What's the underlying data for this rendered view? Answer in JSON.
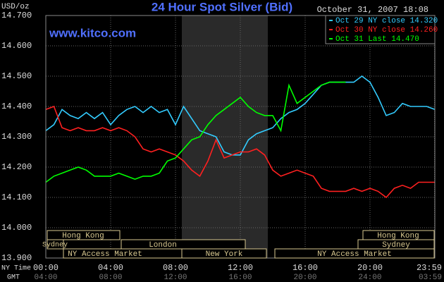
{
  "chart_data": {
    "type": "line",
    "title": "24 Hour Spot Silver (Bid)",
    "date": "October 31, 2007 18:08",
    "website": "www.kitco.com",
    "y_unit": "USD/oz",
    "x_row_labels": [
      "NY Time",
      "GMT"
    ],
    "sessions": [
      "Hong Kong",
      "Hong Kong",
      "Sydney",
      "London",
      "Sydney",
      "NY Access Market",
      "New York",
      "NY Access Market"
    ],
    "xlim": [
      0,
      24
    ],
    "xticks": [
      {
        "value": 0,
        "label": "00:00"
      },
      {
        "value": 4,
        "label": "04:00"
      },
      {
        "value": 8,
        "label": "08:00"
      },
      {
        "value": 12,
        "label": "12:00"
      },
      {
        "value": 16,
        "label": "16:00"
      },
      {
        "value": 20,
        "label": "20:00"
      },
      {
        "value": 23.98,
        "label": "23:59"
      }
    ],
    "gmt_ticks": [
      {
        "value": 0,
        "label": "04:00"
      },
      {
        "value": 4,
        "label": "08:00"
      },
      {
        "value": 8,
        "label": "12:00"
      },
      {
        "value": 12,
        "label": "16:00"
      },
      {
        "value": 16,
        "label": "20:00"
      },
      {
        "value": 20,
        "label": "24:00"
      },
      {
        "value": 23.98,
        "label": "03:59"
      }
    ],
    "ylim": [
      13.9,
      14.7
    ],
    "yticks": [
      {
        "value": 13.9,
        "label": "13.900"
      },
      {
        "value": 14,
        "label": "14.000"
      },
      {
        "value": 14.1,
        "label": "14.100"
      },
      {
        "value": 14.2,
        "label": "14.200"
      },
      {
        "value": 14.3,
        "label": "14.300"
      },
      {
        "value": 14.4,
        "label": "14.400"
      },
      {
        "value": 14.5,
        "label": "14.500"
      },
      {
        "value": 14.6,
        "label": "14.600"
      },
      {
        "value": 14.7,
        "label": "14.700"
      }
    ],
    "grid": true,
    "x": [
      0,
      0.5,
      1,
      1.5,
      2,
      2.5,
      3,
      3.5,
      4,
      4.5,
      5,
      5.5,
      6,
      6.5,
      7,
      7.5,
      8,
      8.5,
      9,
      9.5,
      10,
      10.5,
      11,
      11.5,
      12,
      12.5,
      13,
      13.5,
      14,
      14.5,
      15,
      15.5,
      16,
      16.5,
      17,
      17.5,
      18,
      18.5,
      19,
      19.5,
      20,
      20.5,
      21,
      21.5,
      22,
      22.5,
      23,
      23.5,
      24
    ],
    "series": [
      {
        "name": "Oct 29 NY close 14.320",
        "color": "#33ccff",
        "values": [
          14.32,
          14.34,
          14.39,
          14.37,
          14.36,
          14.38,
          14.36,
          14.38,
          14.34,
          14.37,
          14.39,
          14.4,
          14.38,
          14.4,
          14.38,
          14.39,
          14.34,
          14.4,
          14.36,
          14.32,
          14.31,
          14.3,
          14.25,
          14.24,
          14.24,
          14.29,
          14.31,
          14.32,
          14.33,
          14.36,
          14.38,
          14.39,
          14.41,
          14.44,
          14.47,
          14.48,
          14.48,
          14.48,
          14.48,
          14.5,
          14.48,
          14.43,
          14.37,
          14.38,
          14.41,
          14.4,
          14.4,
          14.4,
          14.39
        ]
      },
      {
        "name": "Oct 30 NY close 14.260",
        "color": "#ff2020",
        "values": [
          14.39,
          14.4,
          14.33,
          14.32,
          14.33,
          14.32,
          14.32,
          14.33,
          14.32,
          14.33,
          14.32,
          14.3,
          14.26,
          14.25,
          14.26,
          14.25,
          14.24,
          14.22,
          14.19,
          14.17,
          14.22,
          14.29,
          14.23,
          14.24,
          14.25,
          14.25,
          14.26,
          14.24,
          14.19,
          14.17,
          14.18,
          14.19,
          14.18,
          14.17,
          14.13,
          14.12,
          14.12,
          14.12,
          14.13,
          14.12,
          14.13,
          14.12,
          14.1,
          14.13,
          14.14,
          14.13,
          14.15,
          14.15,
          14.15
        ]
      },
      {
        "name": "Oct 31 Last 14.470",
        "color": "#00ff00",
        "values": [
          14.15,
          14.17,
          14.18,
          14.19,
          14.2,
          14.19,
          14.17,
          14.17,
          14.17,
          14.18,
          14.17,
          14.16,
          14.17,
          14.17,
          14.18,
          14.22,
          14.23,
          14.26,
          14.29,
          14.3,
          14.34,
          14.37,
          14.39,
          14.41,
          14.43,
          14.4,
          14.38,
          14.37,
          14.37,
          14.32,
          14.47,
          14.41,
          14.43,
          14.45,
          14.47,
          14.48,
          14.48,
          14.48,
          null,
          null,
          null,
          null,
          null,
          null,
          null,
          null,
          null,
          null,
          null
        ]
      }
    ]
  }
}
